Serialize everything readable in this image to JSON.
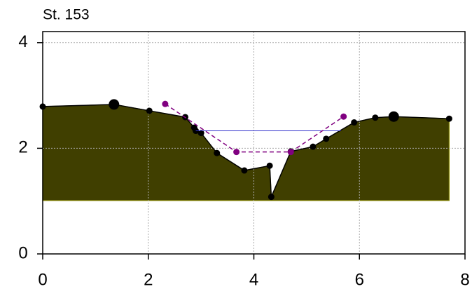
{
  "chart_data": {
    "type": "line",
    "title": "St. 153",
    "xlim": [
      0,
      8
    ],
    "ylim": [
      0,
      4.21
    ],
    "xticks": [
      0,
      2,
      4,
      6,
      8
    ],
    "yticks": [
      0,
      2,
      4
    ],
    "grid": true,
    "series": [
      {
        "kind": "profile",
        "color": "#000000",
        "fill": "#403f00",
        "fill_edge": "#8c8c00",
        "fill_bottom": 1.01,
        "x": [
          0,
          1.35,
          2.02,
          2.7,
          2.87,
          2.9,
          3.0,
          3.3,
          3.82,
          4.3,
          4.33,
          4.7,
          5.12,
          5.37,
          5.9,
          6.3,
          6.65,
          7.7
        ],
        "values": [
          2.79,
          2.83,
          2.71,
          2.59,
          2.39,
          2.33,
          2.29,
          1.91,
          1.58,
          1.67,
          1.08,
          1.94,
          2.03,
          2.18,
          2.49,
          2.58,
          2.6,
          2.56
        ],
        "large_points": [
          1,
          16
        ]
      },
      {
        "kind": "water",
        "color": "#3333cc",
        "x": [
          2.9,
          5.65
        ],
        "values": [
          2.33,
          2.33
        ]
      },
      {
        "kind": "design",
        "color": "#800080",
        "dashed": true,
        "x": [
          2.32,
          3.67,
          4.7,
          5.7
        ],
        "values": [
          2.84,
          1.93,
          1.93,
          2.6
        ]
      }
    ]
  }
}
